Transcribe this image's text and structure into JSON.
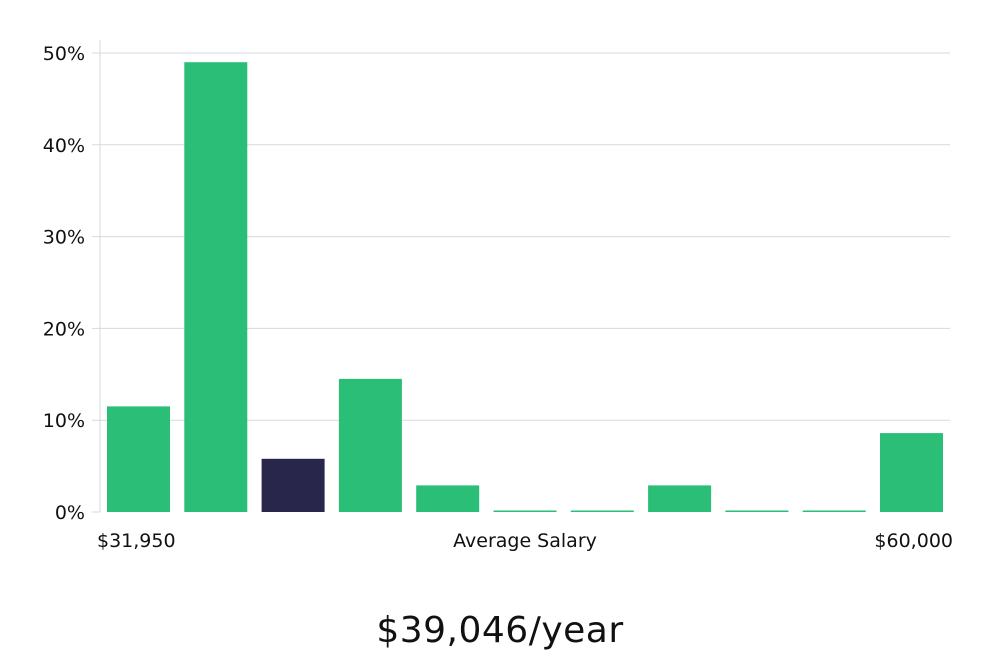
{
  "chart_data": {
    "type": "bar",
    "title": "",
    "xlabel": "Average Salary",
    "ylabel": "",
    "x_min_label": "$31,950",
    "x_max_label": "$60,000",
    "y_ticks": [
      "0%",
      "10%",
      "20%",
      "30%",
      "40%",
      "50%"
    ],
    "ylim": [
      0,
      50
    ],
    "grid": true,
    "values": [
      11.5,
      49.0,
      5.8,
      14.5,
      2.9,
      0.1,
      0.1,
      2.9,
      0.1,
      0.1,
      8.6
    ],
    "highlight_index": 2,
    "colors": {
      "bar": "#2abe76",
      "highlight": "#28264a",
      "grid": "#d9d9dc",
      "axis": "#d9d9dc"
    }
  },
  "headline": "$39,046/year"
}
